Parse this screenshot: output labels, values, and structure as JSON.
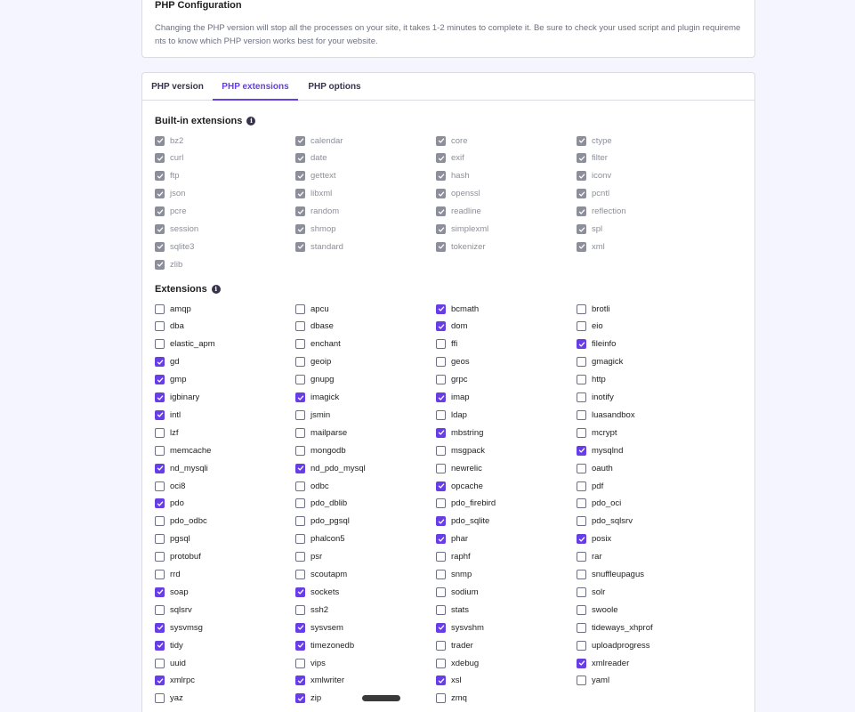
{
  "config": {
    "title": "PHP Configuration",
    "text": "Changing the PHP version will stop all the processes on your site, it takes 1-2 minutes to complete it. Be sure to check your used script and plugin requirements to know which PHP version works best for your website."
  },
  "tabs": [
    {
      "label": "PHP version",
      "active": false
    },
    {
      "label": "PHP extensions",
      "active": true
    },
    {
      "label": "PHP options",
      "active": false
    }
  ],
  "builtin": {
    "title": "Built-in extensions",
    "items": [
      "bz2",
      "calendar",
      "core",
      "ctype",
      "curl",
      "date",
      "exif",
      "filter",
      "ftp",
      "gettext",
      "hash",
      "iconv",
      "json",
      "libxml",
      "openssl",
      "pcntl",
      "pcre",
      "random",
      "readline",
      "reflection",
      "session",
      "shmop",
      "simplexml",
      "spl",
      "sqlite3",
      "standard",
      "tokenizer",
      "xml",
      "zlib"
    ]
  },
  "extensions": {
    "title": "Extensions",
    "items": [
      {
        "name": "amqp",
        "checked": false
      },
      {
        "name": "apcu",
        "checked": false
      },
      {
        "name": "bcmath",
        "checked": true
      },
      {
        "name": "brotli",
        "checked": false
      },
      {
        "name": "dba",
        "checked": false
      },
      {
        "name": "dbase",
        "checked": false
      },
      {
        "name": "dom",
        "checked": true
      },
      {
        "name": "eio",
        "checked": false
      },
      {
        "name": "elastic_apm",
        "checked": false
      },
      {
        "name": "enchant",
        "checked": false
      },
      {
        "name": "ffi",
        "checked": false
      },
      {
        "name": "fileinfo",
        "checked": true
      },
      {
        "name": "gd",
        "checked": true
      },
      {
        "name": "geoip",
        "checked": false
      },
      {
        "name": "geos",
        "checked": false
      },
      {
        "name": "gmagick",
        "checked": false
      },
      {
        "name": "gmp",
        "checked": true
      },
      {
        "name": "gnupg",
        "checked": false
      },
      {
        "name": "grpc",
        "checked": false
      },
      {
        "name": "http",
        "checked": false
      },
      {
        "name": "igbinary",
        "checked": true
      },
      {
        "name": "imagick",
        "checked": true
      },
      {
        "name": "imap",
        "checked": true
      },
      {
        "name": "inotify",
        "checked": false
      },
      {
        "name": "intl",
        "checked": true
      },
      {
        "name": "jsmin",
        "checked": false
      },
      {
        "name": "ldap",
        "checked": false
      },
      {
        "name": "luasandbox",
        "checked": false
      },
      {
        "name": "lzf",
        "checked": false
      },
      {
        "name": "mailparse",
        "checked": false
      },
      {
        "name": "mbstring",
        "checked": true
      },
      {
        "name": "mcrypt",
        "checked": false
      },
      {
        "name": "memcache",
        "checked": false
      },
      {
        "name": "mongodb",
        "checked": false
      },
      {
        "name": "msgpack",
        "checked": false
      },
      {
        "name": "mysqlnd",
        "checked": true
      },
      {
        "name": "nd_mysqli",
        "checked": true
      },
      {
        "name": "nd_pdo_mysql",
        "checked": true
      },
      {
        "name": "newrelic",
        "checked": false
      },
      {
        "name": "oauth",
        "checked": false
      },
      {
        "name": "oci8",
        "checked": false
      },
      {
        "name": "odbc",
        "checked": false
      },
      {
        "name": "opcache",
        "checked": true
      },
      {
        "name": "pdf",
        "checked": false
      },
      {
        "name": "pdo",
        "checked": true
      },
      {
        "name": "pdo_dblib",
        "checked": false
      },
      {
        "name": "pdo_firebird",
        "checked": false
      },
      {
        "name": "pdo_oci",
        "checked": false
      },
      {
        "name": "pdo_odbc",
        "checked": false
      },
      {
        "name": "pdo_pgsql",
        "checked": false
      },
      {
        "name": "pdo_sqlite",
        "checked": true
      },
      {
        "name": "pdo_sqlsrv",
        "checked": false
      },
      {
        "name": "pgsql",
        "checked": false
      },
      {
        "name": "phalcon5",
        "checked": false
      },
      {
        "name": "phar",
        "checked": true
      },
      {
        "name": "posix",
        "checked": true
      },
      {
        "name": "protobuf",
        "checked": false
      },
      {
        "name": "psr",
        "checked": false
      },
      {
        "name": "raphf",
        "checked": false
      },
      {
        "name": "rar",
        "checked": false
      },
      {
        "name": "rrd",
        "checked": false
      },
      {
        "name": "scoutapm",
        "checked": false
      },
      {
        "name": "snmp",
        "checked": false
      },
      {
        "name": "snuffleupagus",
        "checked": false
      },
      {
        "name": "soap",
        "checked": true
      },
      {
        "name": "sockets",
        "checked": true
      },
      {
        "name": "sodium",
        "checked": false
      },
      {
        "name": "solr",
        "checked": false
      },
      {
        "name": "sqlsrv",
        "checked": false
      },
      {
        "name": "ssh2",
        "checked": false
      },
      {
        "name": "stats",
        "checked": false
      },
      {
        "name": "swoole",
        "checked": false
      },
      {
        "name": "sysvmsg",
        "checked": true
      },
      {
        "name": "sysvsem",
        "checked": true
      },
      {
        "name": "sysvshm",
        "checked": true
      },
      {
        "name": "tideways_xhprof",
        "checked": false
      },
      {
        "name": "tidy",
        "checked": true
      },
      {
        "name": "timezonedb",
        "checked": true
      },
      {
        "name": "trader",
        "checked": false
      },
      {
        "name": "uploadprogress",
        "checked": false
      },
      {
        "name": "uuid",
        "checked": false
      },
      {
        "name": "vips",
        "checked": false
      },
      {
        "name": "xdebug",
        "checked": false
      },
      {
        "name": "xmlreader",
        "checked": true
      },
      {
        "name": "xmlrpc",
        "checked": true
      },
      {
        "name": "xmlwriter",
        "checked": true
      },
      {
        "name": "xsl",
        "checked": true
      },
      {
        "name": "yaml",
        "checked": false
      },
      {
        "name": "yaz",
        "checked": false
      },
      {
        "name": "zip",
        "checked": true
      },
      {
        "name": "zmq",
        "checked": false
      }
    ]
  },
  "colors": {
    "accent": "#673de6",
    "disabled": "#8c8f9a"
  }
}
